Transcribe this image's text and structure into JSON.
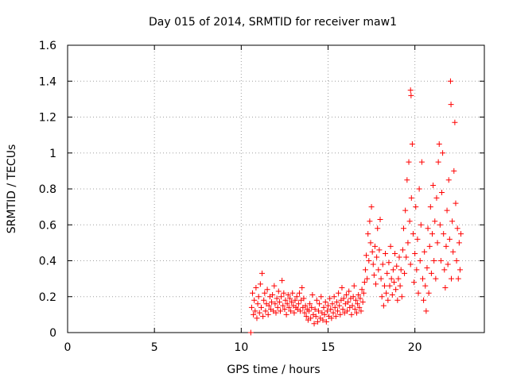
{
  "chart_data": {
    "type": "scatter",
    "title": "Day 015 of 2014, SRMTID for receiver maw1",
    "xlabel": "GPS time / hours",
    "ylabel": "SRMTID / TECUs",
    "xlim": [
      0,
      24
    ],
    "ylim": [
      0,
      1.6
    ],
    "xticks": [
      0,
      5,
      10,
      15,
      20
    ],
    "xtick_labels": [
      "0",
      "5",
      "10",
      "15",
      "20"
    ],
    "yticks": [
      0,
      0.2,
      0.4,
      0.6,
      0.8,
      1,
      1.2,
      1.4,
      1.6
    ],
    "ytick_labels": [
      "0",
      "0.2",
      "0.4",
      "0.6",
      "0.8",
      "1",
      "1.2",
      "1.4",
      "1.6"
    ],
    "grid": true,
    "marker": "+",
    "color": "#ff0000",
    "series": [
      {
        "name": "maw1",
        "points": [
          [
            10.55,
            0.0
          ],
          [
            10.6,
            0.14
          ],
          [
            10.65,
            0.22
          ],
          [
            10.7,
            0.1
          ],
          [
            10.75,
            0.18
          ],
          [
            10.8,
            0.12
          ],
          [
            10.85,
            0.25
          ],
          [
            10.9,
            0.08
          ],
          [
            10.95,
            0.16
          ],
          [
            11.0,
            0.2
          ],
          [
            11.05,
            0.11
          ],
          [
            11.1,
            0.27
          ],
          [
            11.15,
            0.14
          ],
          [
            11.2,
            0.33
          ],
          [
            11.25,
            0.09
          ],
          [
            11.3,
            0.18
          ],
          [
            11.35,
            0.22
          ],
          [
            11.4,
            0.12
          ],
          [
            11.45,
            0.16
          ],
          [
            11.5,
            0.24
          ],
          [
            11.55,
            0.1
          ],
          [
            11.6,
            0.15
          ],
          [
            11.65,
            0.2
          ],
          [
            11.7,
            0.13
          ],
          [
            11.75,
            0.17
          ],
          [
            11.8,
            0.21
          ],
          [
            11.85,
            0.12
          ],
          [
            11.9,
            0.26
          ],
          [
            11.95,
            0.16
          ],
          [
            12.0,
            0.11
          ],
          [
            12.05,
            0.19
          ],
          [
            12.1,
            0.14
          ],
          [
            12.15,
            0.23
          ],
          [
            12.2,
            0.17
          ],
          [
            12.25,
            0.12
          ],
          [
            12.3,
            0.2
          ],
          [
            12.35,
            0.29
          ],
          [
            12.4,
            0.15
          ],
          [
            12.45,
            0.22
          ],
          [
            12.5,
            0.13
          ],
          [
            12.55,
            0.18
          ],
          [
            12.6,
            0.1
          ],
          [
            12.65,
            0.16
          ],
          [
            12.7,
            0.21
          ],
          [
            12.75,
            0.14
          ],
          [
            12.8,
            0.19
          ],
          [
            12.85,
            0.12
          ],
          [
            12.9,
            0.17
          ],
          [
            12.95,
            0.22
          ],
          [
            13.0,
            0.15
          ],
          [
            13.05,
            0.11
          ],
          [
            13.1,
            0.18
          ],
          [
            13.15,
            0.14
          ],
          [
            13.2,
            0.2
          ],
          [
            13.25,
            0.13
          ],
          [
            13.3,
            0.16
          ],
          [
            13.35,
            0.22
          ],
          [
            13.4,
            0.12
          ],
          [
            13.45,
            0.18
          ],
          [
            13.5,
            0.25
          ],
          [
            13.55,
            0.14
          ],
          [
            13.6,
            0.19
          ],
          [
            13.65,
            0.11
          ],
          [
            13.7,
            0.15
          ],
          [
            13.75,
            0.09
          ],
          [
            13.8,
            0.13
          ],
          [
            13.85,
            0.07
          ],
          [
            13.9,
            0.12
          ],
          [
            13.95,
            0.16
          ],
          [
            14.0,
            0.08
          ],
          [
            14.05,
            0.14
          ],
          [
            14.1,
            0.21
          ],
          [
            14.15,
            0.1
          ],
          [
            14.2,
            0.05
          ],
          [
            14.25,
            0.13
          ],
          [
            14.3,
            0.09
          ],
          [
            14.35,
            0.18
          ],
          [
            14.4,
            0.06
          ],
          [
            14.45,
            0.12
          ],
          [
            14.5,
            0.16
          ],
          [
            14.55,
            0.08
          ],
          [
            14.6,
            0.2
          ],
          [
            14.65,
            0.11
          ],
          [
            14.7,
            0.07
          ],
          [
            14.75,
            0.14
          ],
          [
            14.8,
            0.1
          ],
          [
            14.85,
            0.17
          ],
          [
            14.9,
            0.06
          ],
          [
            14.95,
            0.12
          ],
          [
            15.0,
            0.15
          ],
          [
            15.05,
            0.09
          ],
          [
            15.1,
            0.19
          ],
          [
            15.15,
            0.13
          ],
          [
            15.2,
            0.08
          ],
          [
            15.25,
            0.16
          ],
          [
            15.3,
            0.11
          ],
          [
            15.35,
            0.2
          ],
          [
            15.4,
            0.14
          ],
          [
            15.45,
            0.09
          ],
          [
            15.5,
            0.17
          ],
          [
            15.55,
            0.12
          ],
          [
            15.6,
            0.22
          ],
          [
            15.65,
            0.15
          ],
          [
            15.7,
            0.1
          ],
          [
            15.75,
            0.18
          ],
          [
            15.8,
            0.25
          ],
          [
            15.85,
            0.13
          ],
          [
            15.9,
            0.19
          ],
          [
            15.95,
            0.11
          ],
          [
            16.0,
            0.16
          ],
          [
            16.05,
            0.21
          ],
          [
            16.1,
            0.12
          ],
          [
            16.15,
            0.17
          ],
          [
            16.2,
            0.23
          ],
          [
            16.25,
            0.14
          ],
          [
            16.3,
            0.19
          ],
          [
            16.35,
            0.1
          ],
          [
            16.4,
            0.15
          ],
          [
            16.45,
            0.2
          ],
          [
            16.5,
            0.26
          ],
          [
            16.55,
            0.13
          ],
          [
            16.6,
            0.18
          ],
          [
            16.65,
            0.11
          ],
          [
            16.7,
            0.16
          ],
          [
            16.75,
            0.21
          ],
          [
            16.8,
            0.14
          ],
          [
            16.85,
            0.19
          ],
          [
            16.9,
            0.12
          ],
          [
            16.95,
            0.24
          ],
          [
            17.0,
            0.17
          ],
          [
            17.05,
            0.22
          ],
          [
            17.1,
            0.28
          ],
          [
            17.15,
            0.35
          ],
          [
            17.2,
            0.43
          ],
          [
            17.25,
            0.3
          ],
          [
            17.3,
            0.55
          ],
          [
            17.35,
            0.4
          ],
          [
            17.4,
            0.62
          ],
          [
            17.45,
            0.5
          ],
          [
            17.5,
            0.7
          ],
          [
            17.55,
            0.45
          ],
          [
            17.6,
            0.38
          ],
          [
            17.65,
            0.32
          ],
          [
            17.7,
            0.48
          ],
          [
            17.75,
            0.27
          ],
          [
            17.8,
            0.42
          ],
          [
            17.85,
            0.58
          ],
          [
            17.9,
            0.35
          ],
          [
            17.95,
            0.46
          ],
          [
            18.0,
            0.63
          ],
          [
            18.05,
            0.3
          ],
          [
            18.1,
            0.2
          ],
          [
            18.15,
            0.38
          ],
          [
            18.2,
            0.15
          ],
          [
            18.25,
            0.26
          ],
          [
            18.3,
            0.44
          ],
          [
            18.35,
            0.22
          ],
          [
            18.4,
            0.33
          ],
          [
            18.45,
            0.18
          ],
          [
            18.5,
            0.39
          ],
          [
            18.55,
            0.26
          ],
          [
            18.6,
            0.48
          ],
          [
            18.65,
            0.3
          ],
          [
            18.7,
            0.21
          ],
          [
            18.75,
            0.35
          ],
          [
            18.8,
            0.28
          ],
          [
            18.85,
            0.44
          ],
          [
            18.9,
            0.24
          ],
          [
            18.95,
            0.37
          ],
          [
            19.0,
            0.18
          ],
          [
            19.05,
            0.3
          ],
          [
            19.1,
            0.42
          ],
          [
            19.15,
            0.26
          ],
          [
            19.2,
            0.35
          ],
          [
            19.25,
            0.2
          ],
          [
            19.3,
            0.46
          ],
          [
            19.35,
            0.58
          ],
          [
            19.4,
            0.33
          ],
          [
            19.45,
            0.68
          ],
          [
            19.5,
            0.42
          ],
          [
            19.55,
            0.85
          ],
          [
            19.6,
            0.5
          ],
          [
            19.65,
            0.95
          ],
          [
            19.7,
            0.62
          ],
          [
            19.75,
            0.38
          ],
          [
            19.8,
            0.75
          ],
          [
            19.85,
            1.05
          ],
          [
            19.9,
            0.55
          ],
          [
            19.95,
            0.28
          ],
          [
            19.75,
            1.35
          ],
          [
            19.78,
            1.32
          ],
          [
            20.0,
            0.44
          ],
          [
            20.05,
            0.7
          ],
          [
            20.1,
            0.35
          ],
          [
            20.15,
            0.52
          ],
          [
            20.2,
            0.22
          ],
          [
            20.25,
            0.8
          ],
          [
            20.3,
            0.4
          ],
          [
            20.35,
            0.6
          ],
          [
            20.4,
            0.95
          ],
          [
            20.45,
            0.3
          ],
          [
            20.5,
            0.18
          ],
          [
            20.55,
            0.45
          ],
          [
            20.6,
            0.26
          ],
          [
            20.65,
            0.12
          ],
          [
            20.7,
            0.36
          ],
          [
            20.75,
            0.58
          ],
          [
            20.8,
            0.22
          ],
          [
            20.85,
            0.48
          ],
          [
            20.9,
            0.7
          ],
          [
            20.95,
            0.33
          ],
          [
            21.0,
            0.55
          ],
          [
            21.05,
            0.82
          ],
          [
            21.1,
            0.4
          ],
          [
            21.15,
            0.62
          ],
          [
            21.2,
            0.3
          ],
          [
            21.25,
            0.75
          ],
          [
            21.3,
            0.5
          ],
          [
            21.35,
            0.95
          ],
          [
            21.4,
            1.05
          ],
          [
            21.45,
            0.6
          ],
          [
            21.5,
            0.4
          ],
          [
            21.55,
            0.78
          ],
          [
            21.6,
            1.0
          ],
          [
            21.65,
            0.55
          ],
          [
            21.7,
            0.35
          ],
          [
            21.75,
            0.25
          ],
          [
            21.8,
            0.48
          ],
          [
            21.85,
            0.68
          ],
          [
            21.9,
            0.38
          ],
          [
            21.95,
            0.85
          ],
          [
            22.0,
            0.52
          ],
          [
            22.05,
            1.4
          ],
          [
            22.08,
            1.27
          ],
          [
            22.1,
            0.3
          ],
          [
            22.15,
            0.62
          ],
          [
            22.2,
            0.45
          ],
          [
            22.25,
            0.9
          ],
          [
            22.3,
            1.17
          ],
          [
            22.35,
            0.72
          ],
          [
            22.4,
            0.4
          ],
          [
            22.45,
            0.58
          ],
          [
            22.5,
            0.3
          ],
          [
            22.55,
            0.5
          ],
          [
            22.6,
            0.35
          ],
          [
            22.65,
            0.55
          ]
        ]
      }
    ]
  }
}
